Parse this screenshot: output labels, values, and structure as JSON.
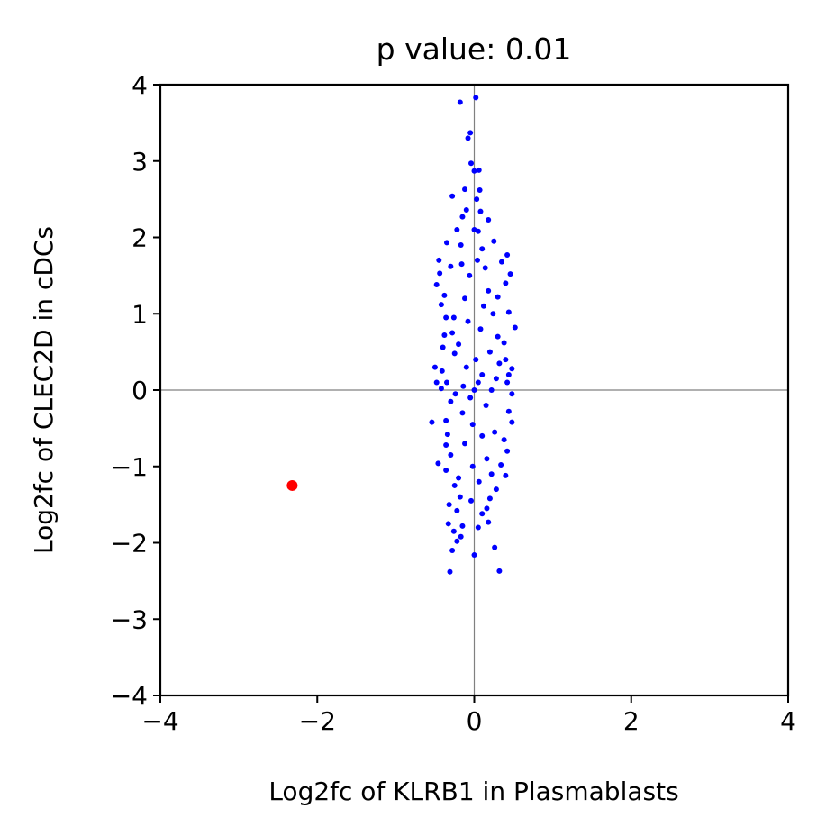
{
  "chart_data": {
    "type": "scatter",
    "title": "p value: 0.01",
    "xlabel": "Log2fc of KLRB1 in Plasmablasts",
    "ylabel": "Log2fc of CLEC2D in cDCs",
    "xlim": [
      -4,
      4
    ],
    "ylim": [
      -4,
      4
    ],
    "xticks": [
      "−4",
      "−2",
      "0",
      "2",
      "4"
    ],
    "yticks": [
      "−4",
      "−3",
      "−2",
      "−1",
      "0",
      "1",
      "2",
      "3",
      "4"
    ],
    "grid": false,
    "reference_lines": {
      "x": 0,
      "y": 0,
      "color": "#808080"
    },
    "series": [
      {
        "color": "#0000ff",
        "marker_size": "small",
        "points": [
          [
            0.02,
            3.83
          ],
          [
            -0.18,
            3.77
          ],
          [
            -0.05,
            3.37
          ],
          [
            -0.08,
            3.3
          ],
          [
            -0.04,
            2.97
          ],
          [
            0.06,
            2.88
          ],
          [
            0.0,
            2.87
          ],
          [
            -0.12,
            2.63
          ],
          [
            0.07,
            2.62
          ],
          [
            -0.28,
            2.54
          ],
          [
            0.03,
            2.5
          ],
          [
            -0.1,
            2.36
          ],
          [
            0.08,
            2.34
          ],
          [
            -0.15,
            2.27
          ],
          [
            0.18,
            2.23
          ],
          [
            -0.22,
            2.1
          ],
          [
            0.05,
            2.08
          ],
          [
            -0.35,
            1.93
          ],
          [
            0.25,
            1.95
          ],
          [
            -0.17,
            1.9
          ],
          [
            0.42,
            1.77
          ],
          [
            -0.45,
            1.7
          ],
          [
            0.35,
            1.68
          ],
          [
            -0.3,
            1.62
          ],
          [
            -0.44,
            1.53
          ],
          [
            0.46,
            1.52
          ],
          [
            -0.48,
            1.38
          ],
          [
            0.4,
            1.4
          ],
          [
            -0.38,
            1.24
          ],
          [
            0.3,
            1.22
          ],
          [
            -0.42,
            1.12
          ],
          [
            0.44,
            1.02
          ],
          [
            -0.36,
            0.95
          ],
          [
            -0.38,
            0.72
          ],
          [
            0.52,
            0.82
          ],
          [
            -0.4,
            0.56
          ],
          [
            0.38,
            0.62
          ],
          [
            -0.25,
            0.48
          ],
          [
            0.4,
            0.4
          ],
          [
            -0.5,
            0.3
          ],
          [
            -0.41,
            0.25
          ],
          [
            0.48,
            0.28
          ],
          [
            0.44,
            0.2
          ],
          [
            -0.35,
            0.1
          ],
          [
            -0.48,
            0.1
          ],
          [
            0.42,
            0.1
          ],
          [
            -0.42,
            0.02
          ],
          [
            0.48,
            -0.05
          ],
          [
            -0.3,
            -0.15
          ],
          [
            0.44,
            -0.28
          ],
          [
            -0.54,
            -0.42
          ],
          [
            -0.36,
            -0.4
          ],
          [
            0.48,
            -0.42
          ],
          [
            -0.34,
            -0.58
          ],
          [
            0.38,
            -0.65
          ],
          [
            -0.36,
            -0.72
          ],
          [
            0.42,
            -0.8
          ],
          [
            -0.3,
            -0.85
          ],
          [
            -0.46,
            -0.96
          ],
          [
            0.34,
            -0.98
          ],
          [
            -0.36,
            -1.05
          ],
          [
            0.4,
            -1.12
          ],
          [
            -0.25,
            -1.25
          ],
          [
            0.28,
            -1.3
          ],
          [
            -0.18,
            -1.4
          ],
          [
            0.2,
            -1.42
          ],
          [
            -0.32,
            -1.5
          ],
          [
            0.16,
            -1.55
          ],
          [
            -0.22,
            -1.58
          ],
          [
            0.1,
            -1.62
          ],
          [
            -0.33,
            -1.75
          ],
          [
            0.18,
            -1.73
          ],
          [
            -0.15,
            -1.78
          ],
          [
            -0.26,
            -1.85
          ],
          [
            0.05,
            -1.8
          ],
          [
            -0.17,
            -1.92
          ],
          [
            -0.22,
            -1.98
          ],
          [
            0.26,
            -2.06
          ],
          [
            -0.28,
            -2.1
          ],
          [
            0.0,
            -2.16
          ],
          [
            -0.31,
            -2.38
          ],
          [
            0.32,
            -2.37
          ],
          [
            0.0,
            0.0
          ],
          [
            0.05,
            0.1
          ],
          [
            -0.05,
            -0.1
          ],
          [
            0.1,
            0.2
          ],
          [
            -0.1,
            0.3
          ],
          [
            0.15,
            -0.2
          ],
          [
            -0.15,
            -0.3
          ],
          [
            0.2,
            0.5
          ],
          [
            -0.2,
            0.6
          ],
          [
            0.08,
            0.8
          ],
          [
            -0.08,
            0.9
          ],
          [
            0.12,
            1.1
          ],
          [
            -0.12,
            1.2
          ],
          [
            0.18,
            1.3
          ],
          [
            -0.06,
            1.5
          ],
          [
            0.04,
            1.7
          ],
          [
            0.1,
            -0.6
          ],
          [
            -0.12,
            -0.7
          ],
          [
            0.16,
            -0.9
          ],
          [
            -0.02,
            -1.0
          ],
          [
            0.06,
            -1.2
          ],
          [
            -0.14,
            0.05
          ],
          [
            0.22,
            0.0
          ],
          [
            -0.24,
            -0.05
          ],
          [
            0.28,
            0.15
          ],
          [
            0.02,
            0.4
          ],
          [
            -0.02,
            -0.45
          ],
          [
            0.3,
            0.7
          ],
          [
            -0.28,
            0.75
          ],
          [
            0.26,
            -0.55
          ],
          [
            0.24,
            1.0
          ],
          [
            -0.26,
            0.95
          ],
          [
            0.14,
            1.6
          ],
          [
            -0.16,
            1.65
          ],
          [
            0.22,
            -1.1
          ],
          [
            -0.2,
            -1.15
          ],
          [
            0.0,
            2.1
          ],
          [
            0.1,
            1.85
          ],
          [
            -0.04,
            -1.45
          ],
          [
            0.32,
            0.35
          ]
        ]
      },
      {
        "color": "#ff0000",
        "marker_size": "large",
        "points": [
          [
            -2.32,
            -1.25
          ]
        ]
      }
    ]
  }
}
